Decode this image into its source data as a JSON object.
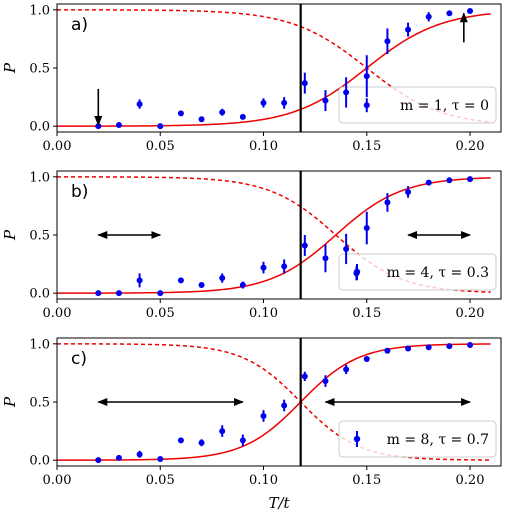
{
  "xlabel": "T/t",
  "ylabel": "P",
  "marker_line_x": 0.118,
  "colors": {
    "data": "#0000ee",
    "curve": "#ee0000",
    "marker": "#000000"
  },
  "xlim": [
    0.0,
    0.215
  ],
  "ylim": [
    -0.05,
    1.05
  ],
  "x_ticks": [
    "0.00",
    "0.05",
    "0.10",
    "0.15",
    "0.20"
  ],
  "y_ticks": [
    "0.0",
    "0.5",
    "1.0"
  ],
  "chart_data": [
    {
      "type": "scatter",
      "tag": "a)",
      "legend": "m = 1, τ = 0",
      "xlim": [
        0.0,
        0.215
      ],
      "ylim": [
        -0.05,
        1.05
      ],
      "sigmoid_T0": 0.15,
      "sigmoid_w": 0.018,
      "x": [
        0.02,
        0.03,
        0.04,
        0.05,
        0.06,
        0.07,
        0.08,
        0.09,
        0.1,
        0.11,
        0.12,
        0.13,
        0.14,
        0.15,
        0.15,
        0.16,
        0.17,
        0.18,
        0.19,
        0.2
      ],
      "y": [
        0.0,
        0.01,
        0.19,
        0.0,
        0.11,
        0.06,
        0.12,
        0.08,
        0.2,
        0.2,
        0.37,
        0.22,
        0.29,
        0.43,
        0.18,
        0.73,
        0.83,
        0.94,
        0.97,
        0.99
      ],
      "yerr": [
        0.01,
        0.01,
        0.04,
        0.01,
        0.02,
        0.02,
        0.03,
        0.02,
        0.04,
        0.05,
        0.09,
        0.09,
        0.13,
        0.18,
        0.06,
        0.11,
        0.06,
        0.04,
        0.02,
        0.01
      ],
      "arrows": [
        {
          "kind": "down",
          "x": 0.02,
          "y_from": 0.32,
          "y_to": 0.01
        },
        {
          "kind": "up",
          "x": 0.197,
          "y_from": 0.72,
          "y_to": 0.97
        }
      ]
    },
    {
      "type": "scatter",
      "tag": "b)",
      "legend": "m = 4, τ = 0.3",
      "xlim": [
        0.0,
        0.215
      ],
      "ylim": [
        -0.05,
        1.05
      ],
      "sigmoid_T0": 0.135,
      "sigmoid_w": 0.016,
      "x": [
        0.02,
        0.03,
        0.04,
        0.05,
        0.06,
        0.07,
        0.08,
        0.09,
        0.1,
        0.11,
        0.12,
        0.13,
        0.14,
        0.145,
        0.15,
        0.16,
        0.17,
        0.18,
        0.19,
        0.2
      ],
      "y": [
        0.0,
        0.0,
        0.11,
        0.0,
        0.11,
        0.07,
        0.13,
        0.07,
        0.22,
        0.23,
        0.41,
        0.3,
        0.38,
        0.17,
        0.56,
        0.78,
        0.87,
        0.95,
        0.97,
        0.98
      ],
      "yerr": [
        0.01,
        0.01,
        0.06,
        0.01,
        0.02,
        0.02,
        0.04,
        0.03,
        0.05,
        0.06,
        0.09,
        0.12,
        0.13,
        0.06,
        0.14,
        0.08,
        0.05,
        0.02,
        0.02,
        0.01
      ],
      "arrows": [
        {
          "kind": "double",
          "x_from": 0.02,
          "x_to": 0.05,
          "y": 0.5
        },
        {
          "kind": "double",
          "x_from": 0.17,
          "x_to": 0.2,
          "y": 0.5
        }
      ]
    },
    {
      "type": "scatter",
      "tag": "c)",
      "legend": "m = 8, τ = 0.7",
      "xlim": [
        0.0,
        0.215
      ],
      "ylim": [
        -0.05,
        1.05
      ],
      "sigmoid_T0": 0.118,
      "sigmoid_w": 0.014,
      "x": [
        0.02,
        0.03,
        0.04,
        0.05,
        0.06,
        0.07,
        0.08,
        0.09,
        0.1,
        0.11,
        0.12,
        0.13,
        0.14,
        0.15,
        0.16,
        0.17,
        0.18,
        0.19,
        0.2
      ],
      "y": [
        0.0,
        0.02,
        0.05,
        0.01,
        0.17,
        0.15,
        0.25,
        0.17,
        0.38,
        0.47,
        0.72,
        0.68,
        0.78,
        0.87,
        0.94,
        0.96,
        0.97,
        0.98,
        0.99
      ],
      "yerr": [
        0.01,
        0.02,
        0.03,
        0.01,
        0.02,
        0.03,
        0.05,
        0.05,
        0.05,
        0.05,
        0.04,
        0.05,
        0.04,
        0.02,
        0.01,
        0.01,
        0.01,
        0.01,
        0.01
      ],
      "arrows": [
        {
          "kind": "double",
          "x_from": 0.02,
          "x_to": 0.09,
          "y": 0.5
        },
        {
          "kind": "double",
          "x_from": 0.13,
          "x_to": 0.2,
          "y": 0.5
        }
      ]
    }
  ]
}
